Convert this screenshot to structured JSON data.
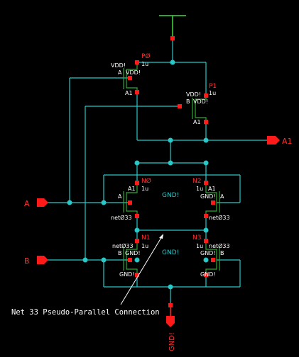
{
  "colors": {
    "background": "#000000",
    "wire": "#28c8c8",
    "device": "#2fa82f",
    "pin": "#ff1a1a",
    "instance_label": "#ff3030",
    "text": "#ffffff",
    "supply": "#3fdc3f"
  },
  "pins": {
    "a1": "A1",
    "a": "A",
    "b": "B",
    "gnd": "GND!"
  },
  "labels": {
    "gnd_center_top": "GND!",
    "gnd_center_bottom": "GND!",
    "annotation": "Net 33 Pseudo-Parallel Connection"
  },
  "devices": {
    "p0": {
      "name": "PØ",
      "width": "1u",
      "bulk": "VDD!",
      "gate": "A",
      "source": "VDD!",
      "drain": "A1"
    },
    "p1": {
      "name": "P1",
      "width": "1u",
      "bulk": "VDD!",
      "gate": "B",
      "source": "VDD!",
      "drain": "A1"
    },
    "n0": {
      "name": "NØ",
      "width": "1u",
      "drain": "A1",
      "gate": "A",
      "source": "netØ33",
      "bulk": "GND!"
    },
    "n2": {
      "name": "N2",
      "width": "1u",
      "drain": "A1",
      "gate": "A",
      "source": "netØ33",
      "bulk": "GND!"
    },
    "n1": {
      "name": "N1",
      "width": "1u",
      "drain": "netØ33",
      "gate": "B",
      "source": "GND!",
      "bulk": "GND!"
    },
    "n3": {
      "name": "N3",
      "width": "1u",
      "drain": "GND!",
      "gate": "B",
      "source": "GND!",
      "bulk": "netØ33"
    }
  }
}
